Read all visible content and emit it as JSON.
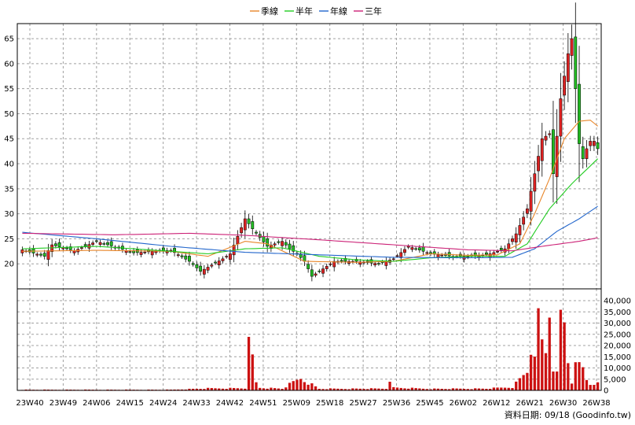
{
  "chart_data": {
    "type": "candlestick",
    "legend": [
      {
        "label": "季線",
        "color": "#e8862a"
      },
      {
        "label": "半年",
        "color": "#22cc22"
      },
      {
        "label": "年線",
        "color": "#2266cc"
      },
      {
        "label": "三年",
        "color": "#cc2277"
      }
    ],
    "price_axis": {
      "ylim": [
        15,
        68
      ],
      "ticks": [
        20,
        25,
        30,
        35,
        40,
        45,
        50,
        55,
        60,
        65
      ]
    },
    "volume_axis": {
      "ylim": [
        0,
        40000
      ],
      "ticks": [
        "0",
        "5,000",
        "10,000",
        "15,000",
        "20,000",
        "25,000",
        "30,000",
        "35,000",
        "40,000"
      ]
    },
    "x_labels": [
      "23W40",
      "23W49",
      "24W06",
      "24W15",
      "24W24",
      "24W33",
      "24W42",
      "24W51",
      "25W09",
      "25W18",
      "25W27",
      "25W36",
      "25W45",
      "26W02",
      "26W12",
      "26W21",
      "26W30",
      "26W38"
    ],
    "footer": "資料日期: 09/18 (Goodinfo.tw)",
    "colors": {
      "up": "#dd2222",
      "down": "#22bb22",
      "volume": "#cc1111",
      "grid": "#a0a0a0"
    },
    "weeks": 156,
    "candle_keypoints": [
      [
        0,
        22.8
      ],
      [
        6,
        21.5
      ],
      [
        8,
        23.8
      ],
      [
        14,
        22.6
      ],
      [
        20,
        24.5
      ],
      [
        30,
        22.2
      ],
      [
        40,
        22.7
      ],
      [
        45,
        20.5
      ],
      [
        48,
        18.5
      ],
      [
        54,
        21
      ],
      [
        56,
        22
      ],
      [
        60,
        29
      ],
      [
        62,
        27
      ],
      [
        66,
        23.5
      ],
      [
        70,
        24.5
      ],
      [
        72,
        23
      ],
      [
        74,
        22
      ],
      [
        76,
        20.5
      ],
      [
        78,
        17.5
      ],
      [
        84,
        20.5
      ],
      [
        90,
        20.5
      ],
      [
        96,
        20
      ],
      [
        100,
        21
      ],
      [
        104,
        23.5
      ],
      [
        110,
        22
      ],
      [
        116,
        21.5
      ],
      [
        122,
        21.6
      ],
      [
        126,
        22
      ],
      [
        130,
        23
      ],
      [
        133,
        26
      ],
      [
        136,
        31
      ],
      [
        138,
        38
      ],
      [
        140,
        45
      ],
      [
        142,
        46
      ],
      [
        143,
        38
      ],
      [
        145,
        53
      ],
      [
        147,
        62
      ],
      [
        148,
        65
      ],
      [
        149,
        55
      ],
      [
        150,
        44
      ],
      [
        151,
        41
      ],
      [
        152,
        43
      ],
      [
        153,
        44.5
      ],
      [
        154,
        44.5
      ],
      [
        155,
        43
      ]
    ],
    "ma_series": [
      {
        "name": "季線",
        "points": [
          [
            0,
            22.5
          ],
          [
            20,
            22.7
          ],
          [
            40,
            22.5
          ],
          [
            50,
            21.5
          ],
          [
            60,
            24.5
          ],
          [
            66,
            24
          ],
          [
            76,
            20.5
          ],
          [
            90,
            20.3
          ],
          [
            100,
            20.5
          ],
          [
            110,
            22
          ],
          [
            120,
            21.7
          ],
          [
            128,
            21.8
          ],
          [
            134,
            24
          ],
          [
            138,
            30
          ],
          [
            142,
            37
          ],
          [
            146,
            45
          ],
          [
            150,
            48.5
          ],
          [
            153,
            48.7
          ],
          [
            155,
            47.5
          ]
        ]
      },
      {
        "name": "半年",
        "points": [
          [
            0,
            23
          ],
          [
            20,
            23.5
          ],
          [
            40,
            22.5
          ],
          [
            50,
            22
          ],
          [
            60,
            23
          ],
          [
            70,
            23.2
          ],
          [
            80,
            21.5
          ],
          [
            90,
            20.8
          ],
          [
            100,
            20.5
          ],
          [
            110,
            21.2
          ],
          [
            120,
            21.5
          ],
          [
            130,
            21.5
          ],
          [
            136,
            24
          ],
          [
            142,
            31
          ],
          [
            148,
            36
          ],
          [
            155,
            41
          ]
        ]
      },
      {
        "name": "年線",
        "points": [
          [
            0,
            26.3
          ],
          [
            20,
            25
          ],
          [
            40,
            23.5
          ],
          [
            60,
            22.3
          ],
          [
            80,
            21.8
          ],
          [
            100,
            21.3
          ],
          [
            120,
            21.2
          ],
          [
            132,
            21.3
          ],
          [
            138,
            23
          ],
          [
            144,
            26.5
          ],
          [
            150,
            29
          ],
          [
            155,
            31.5
          ]
        ]
      },
      {
        "name": "三年",
        "points": [
          [
            0,
            26.1
          ],
          [
            25,
            25.8
          ],
          [
            45,
            26.1
          ],
          [
            60,
            25.7
          ],
          [
            80,
            24.8
          ],
          [
            100,
            23.8
          ],
          [
            120,
            22.8
          ],
          [
            132,
            22.6
          ],
          [
            140,
            23.5
          ],
          [
            150,
            24.5
          ],
          [
            155,
            25.2
          ]
        ]
      }
    ],
    "volume_keypoints": [
      [
        0,
        300
      ],
      [
        40,
        300
      ],
      [
        50,
        900
      ],
      [
        60,
        1000
      ],
      [
        61,
        19000
      ],
      [
        62,
        14000
      ],
      [
        63,
        3500
      ],
      [
        64,
        1200
      ],
      [
        70,
        800
      ],
      [
        75,
        5500
      ],
      [
        80,
        700
      ],
      [
        98,
        800
      ],
      [
        99,
        5500
      ],
      [
        100,
        1200
      ],
      [
        110,
        700
      ],
      [
        125,
        800
      ],
      [
        132,
        1500
      ],
      [
        134,
        5000
      ],
      [
        136,
        9000
      ],
      [
        137,
        21000
      ],
      [
        138,
        12000
      ],
      [
        139,
        32000
      ],
      [
        140,
        22000
      ],
      [
        141,
        18000
      ],
      [
        142,
        40000
      ],
      [
        143,
        12000
      ],
      [
        144,
        7000
      ],
      [
        145,
        33000
      ],
      [
        146,
        31000
      ],
      [
        147,
        14000
      ],
      [
        148,
        4000
      ],
      [
        149,
        10000
      ],
      [
        150,
        11000
      ],
      [
        151,
        10000
      ],
      [
        152,
        5000
      ],
      [
        153,
        3000
      ],
      [
        154,
        3500
      ],
      [
        155,
        3000
      ]
    ]
  }
}
